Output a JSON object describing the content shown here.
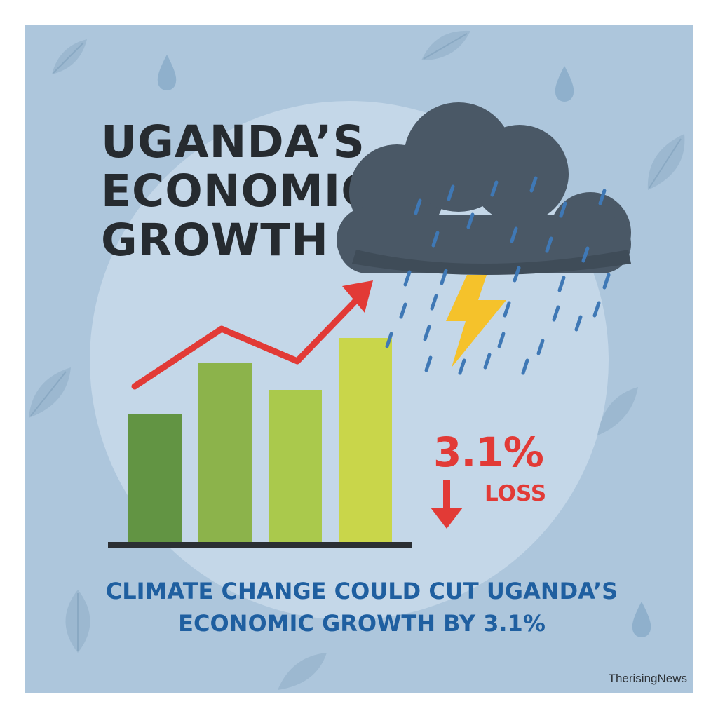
{
  "title": {
    "lines": [
      "UGANDA’S",
      "ECONOMIC",
      "GROWTH"
    ]
  },
  "stat": {
    "value": "3.1%",
    "label": "LOSS"
  },
  "headline": {
    "lines": [
      "CLIMATE CHANGE COULD CUT UGANDA’S",
      "ECONOMIC GROWTH BY 3.1%"
    ]
  },
  "credit": "TherisingNews",
  "icons": [
    "leaf-icon",
    "raindrop-icon",
    "storm-cloud-icon",
    "lightning-bolt-icon",
    "trend-arrow-icon",
    "down-arrow-icon"
  ],
  "colors": {
    "background": "#adc6dc",
    "cloud": "#4a5866",
    "rain": "#3f78b5",
    "lightning": "#f5c22b",
    "trend_arrow": "#e23a36",
    "loss_text": "#e23a36",
    "headline_text": "#1f5fa0",
    "bars": [
      "#629443",
      "#8cb34b",
      "#aac94c",
      "#c9d64a"
    ]
  }
}
